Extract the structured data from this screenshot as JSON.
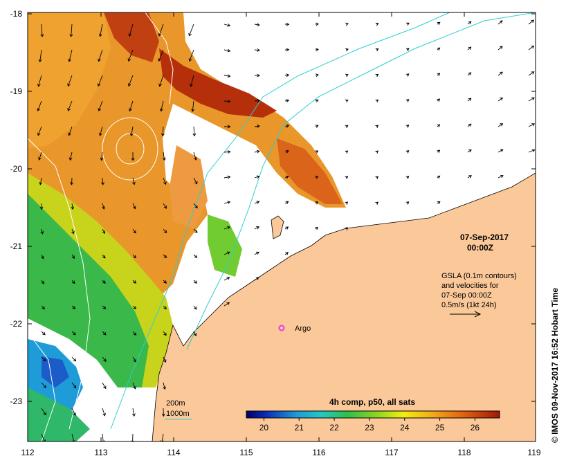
{
  "map": {
    "x_ticks": [
      "112",
      "113",
      "114",
      "115",
      "116",
      "117",
      "118",
      "119"
    ],
    "y_ticks": [
      "-18",
      "-19",
      "-20",
      "-21",
      "-22",
      "-23"
    ],
    "date_line": "07-Sep-2017",
    "time_line": "00:00Z",
    "gsla_lines": [
      "GSLA (0.1m contours)",
      "and velocities for",
      "07-Sep 00:00Z",
      "0.5m/s (1kt 24h)"
    ],
    "argo_label": "Argo",
    "legend": {
      "depth_200": "200m",
      "depth_1000": "1000m"
    },
    "colorbar": {
      "title": "4h comp, p50, all sats",
      "ticks": [
        "20",
        "21",
        "22",
        "23",
        "24",
        "25",
        "26"
      ],
      "range": [
        19.5,
        26.7
      ]
    },
    "copyright": "© IMOS 09-Nov-2017 16:52 Hobart Time",
    "colors": {
      "land": "#fbc899",
      "coast_contour": "#2ad0d0",
      "argo": "#e83ae8",
      "warm": "#b5300a",
      "cool": "#1e9cd8"
    }
  }
}
